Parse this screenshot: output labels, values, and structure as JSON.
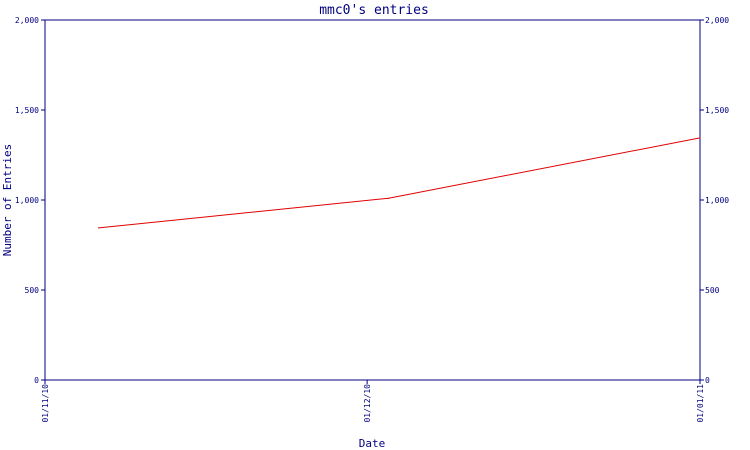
{
  "chart_data": {
    "type": "line",
    "title": "mmc0's entries",
    "xlabel": "Date",
    "ylabel": "Number of Entries",
    "x_range": [
      "2010-11-01",
      "2011-01-01"
    ],
    "ylim": [
      0,
      2000
    ],
    "yticks": [
      0,
      500,
      1000,
      1500,
      2000
    ],
    "ytick_labels": [
      "0",
      "500",
      "1,000",
      "1,500",
      "2,000"
    ],
    "xticks": [
      "2010-11-01",
      "2010-12-01",
      "2011-01-01"
    ],
    "xtick_labels": [
      "01/11/10",
      "01/12/10",
      "01/01/11"
    ],
    "grid": false,
    "legend": "none",
    "right_axis_mirrors_left": true,
    "series": [
      {
        "color": "#e00000",
        "points": [
          {
            "x": "2010-11-06",
            "y": 845
          },
          {
            "x": "2010-12-03",
            "y": 1010
          },
          {
            "x": "2011-01-01",
            "y": 1345
          }
        ]
      }
    ],
    "colors": {
      "axis": "#000080",
      "text": "#000080",
      "line": "#e00000"
    }
  }
}
